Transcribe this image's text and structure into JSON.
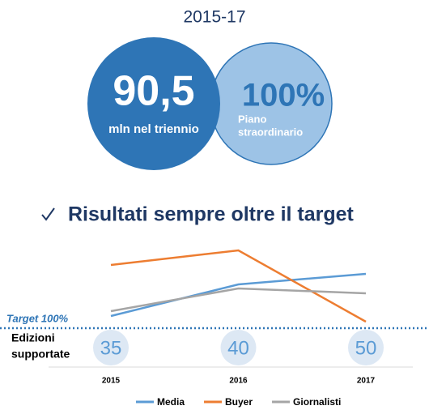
{
  "header": {
    "period": "2015-17",
    "budget": {
      "value": "90,5",
      "caption": "mln nel triennio"
    },
    "plan": {
      "value": "100%",
      "caption_lines": [
        "Piano",
        "straordinario"
      ]
    }
  },
  "subtitle": "Risultati sempre oltre il target",
  "chart_data": {
    "type": "line",
    "categories": [
      "2015",
      "2016",
      "2017"
    ],
    "series": [
      {
        "name": "Media",
        "color": "#5b9bd5",
        "values": [
          115,
          154,
          167
        ]
      },
      {
        "name": "Buyer",
        "color": "#ed7d31",
        "values": [
          178,
          196,
          108
        ]
      },
      {
        "name": "Giornalisti",
        "color": "#a5a5a5",
        "values": [
          121,
          149,
          143
        ]
      }
    ],
    "ylim": [
      90,
      200
    ],
    "target": 100,
    "target_label": "Target 100%",
    "editions_label_lines": [
      "Edizioni",
      "supportate"
    ],
    "editions": [
      35,
      40,
      50
    ],
    "legend": "bottom"
  }
}
